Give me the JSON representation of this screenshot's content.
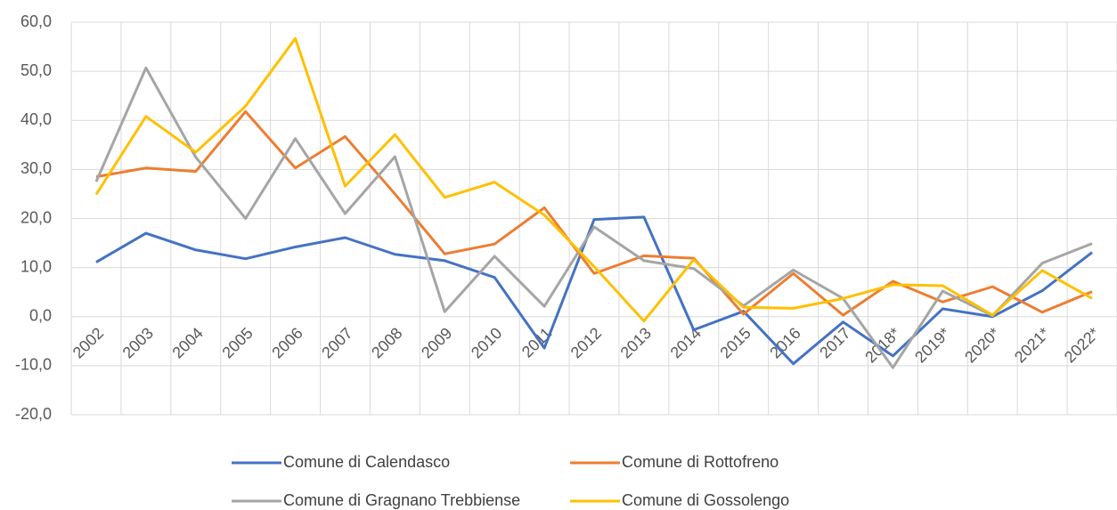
{
  "chart_data": {
    "type": "line",
    "categories": [
      "2002",
      "2003",
      "2004",
      "2005",
      "2006",
      "2007",
      "2008",
      "2009",
      "2010",
      "2011",
      "2012",
      "2013",
      "2014",
      "2015",
      "2016",
      "2017",
      "2018*",
      "2019*",
      "2020*",
      "2021*",
      "2022*"
    ],
    "series": [
      {
        "name": "Comune di Calendasco",
        "color": "#4472c4",
        "values": [
          11.1,
          17.0,
          13.6,
          11.8,
          14.2,
          16.1,
          12.7,
          11.4,
          8.0,
          -6.4,
          19.8,
          20.3,
          -2.7,
          1.1,
          -9.6,
          -1.1,
          -8.0,
          1.6,
          0.0,
          5.3,
          13.1
        ]
      },
      {
        "name": "Comune di Rottofreno",
        "color": "#ed7d31",
        "values": [
          28.5,
          30.3,
          29.6,
          41.8,
          30.3,
          36.7,
          25.0,
          12.8,
          14.8,
          22.2,
          8.8,
          12.4,
          11.9,
          0.5,
          8.8,
          0.3,
          7.2,
          3.0,
          6.1,
          0.9,
          5.1
        ]
      },
      {
        "name": "Comune di Gragnano Trebbiense",
        "color": "#a5a5a5",
        "values": [
          27.5,
          50.7,
          32.5,
          20.0,
          36.3,
          21.0,
          32.6,
          1.0,
          12.3,
          2.1,
          18.3,
          11.4,
          9.8,
          2.2,
          9.5,
          3.7,
          -10.4,
          5.2,
          0.2,
          10.9,
          14.9
        ]
      },
      {
        "name": "Comune di Gossolengo",
        "color": "#ffc000",
        "values": [
          24.9,
          40.8,
          33.5,
          42.9,
          56.7,
          26.6,
          37.1,
          24.3,
          27.4,
          20.7,
          10.2,
          -0.9,
          11.6,
          1.9,
          1.7,
          3.7,
          6.5,
          6.3,
          0.3,
          9.4,
          3.7
        ]
      }
    ],
    "ylim": [
      -20,
      60
    ],
    "yticks": [
      {
        "value": -20,
        "label": "-20,0"
      },
      {
        "value": -10,
        "label": "-10,0"
      },
      {
        "value": 0,
        "label": "0,0"
      },
      {
        "value": 10,
        "label": "10,0"
      },
      {
        "value": 20,
        "label": "20,0"
      },
      {
        "value": 30,
        "label": "30,0"
      },
      {
        "value": 40,
        "label": "40,0"
      },
      {
        "value": 50,
        "label": "50,0"
      },
      {
        "value": 60,
        "label": "60,0"
      }
    ],
    "grid": true,
    "legend": "bottom"
  }
}
